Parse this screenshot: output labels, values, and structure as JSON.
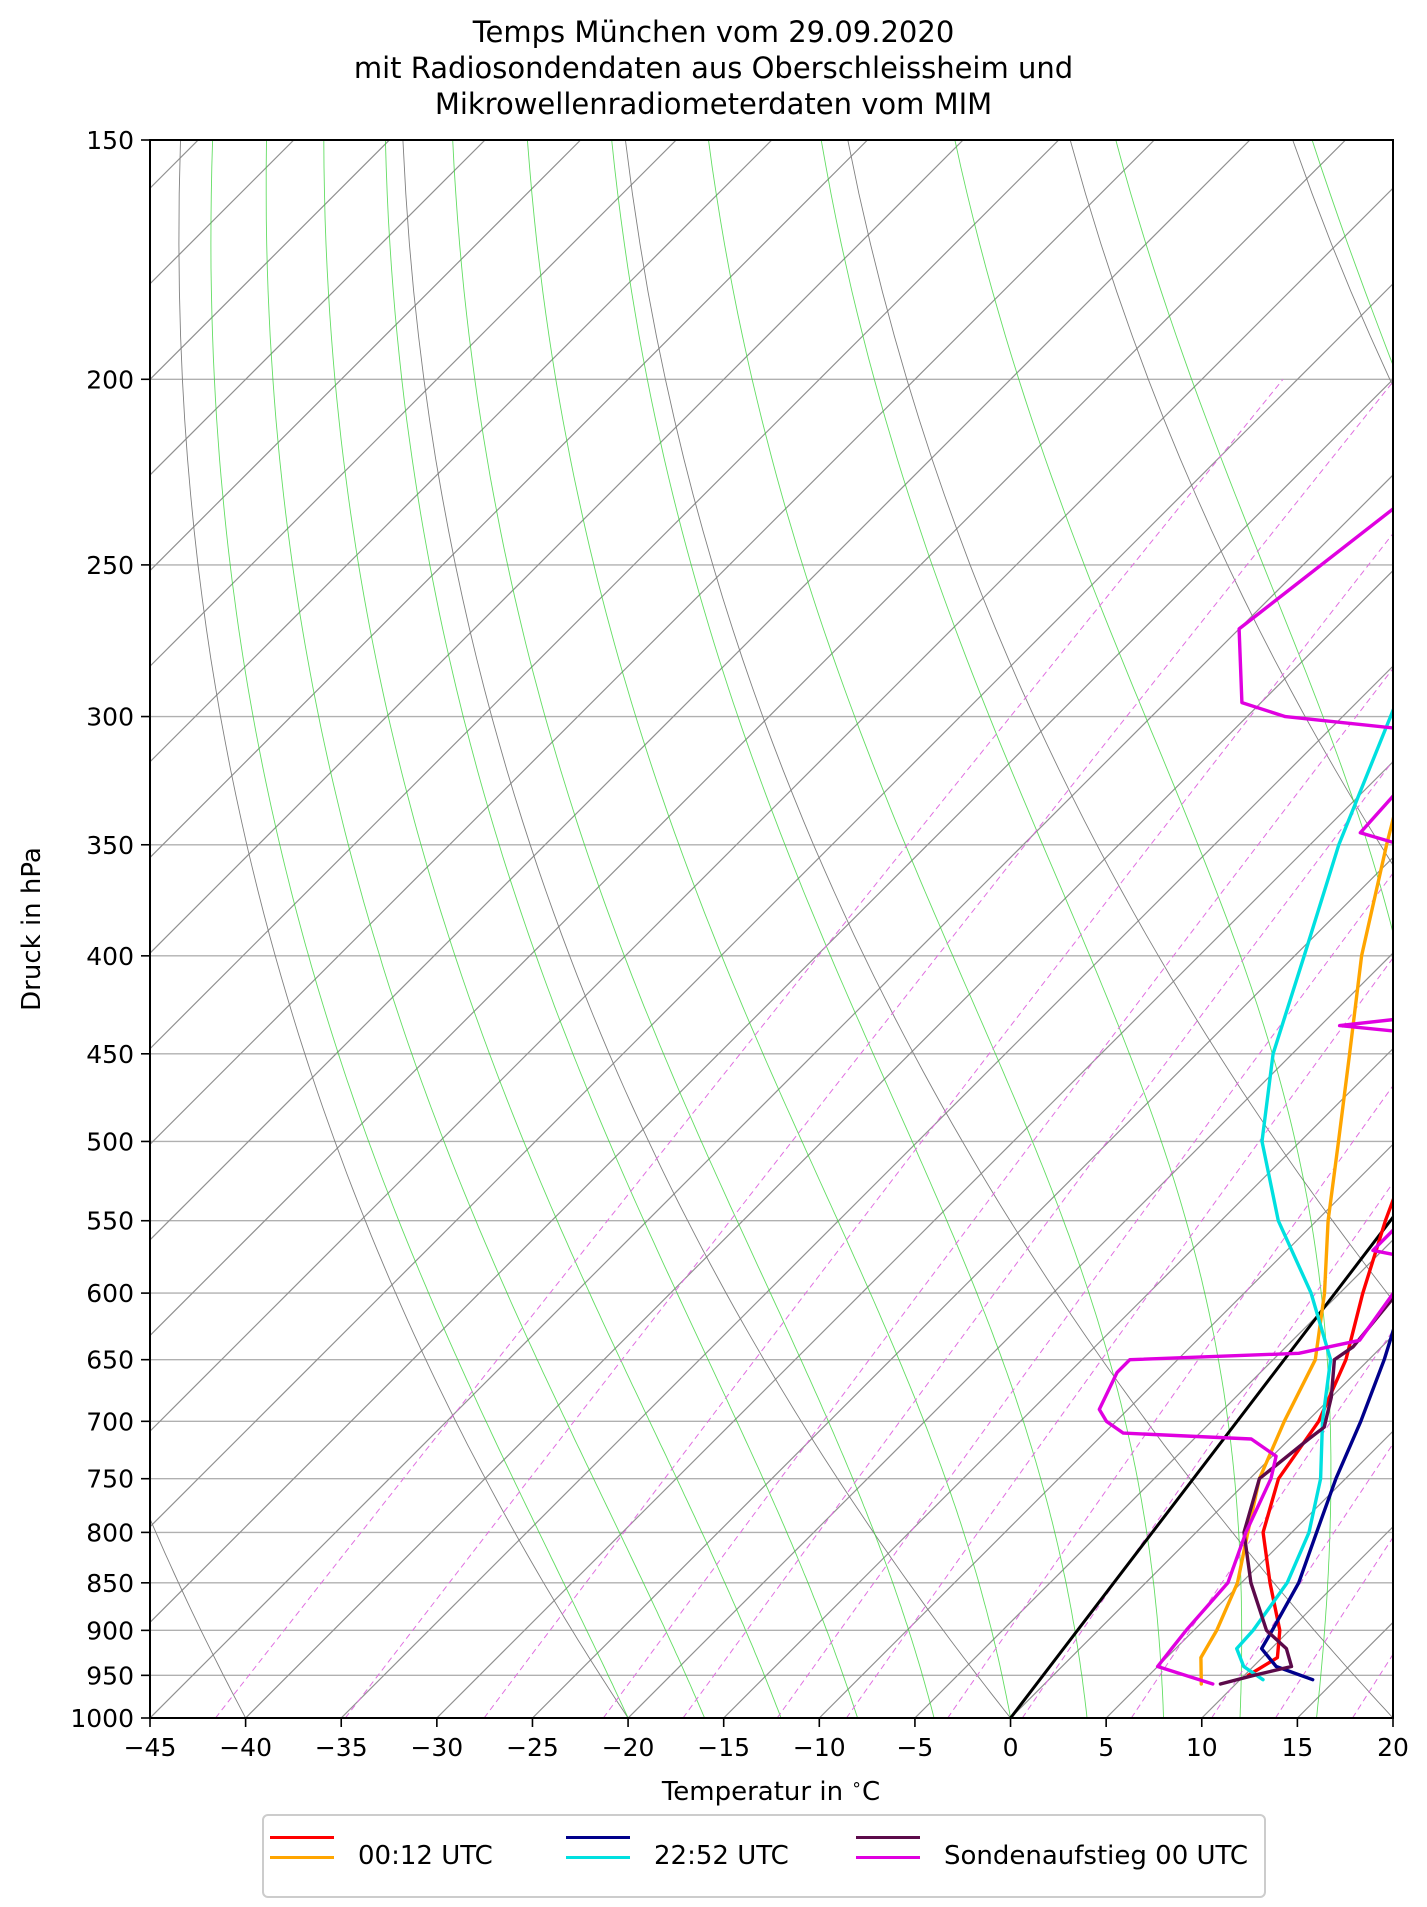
{
  "title": {
    "line1": "Temps München vom 29.09.2020",
    "line2": "mit Radiosondendaten aus Oberschleissheim und",
    "line3": "Mikrowellenradiometerdaten vom MIM"
  },
  "chart_data": {
    "type": "line",
    "diagram": "skew-T log-p",
    "xlabel": "Temperatur in $^\\circ$C",
    "ylabel": "Druck in hPa",
    "xlim": [
      -45,
      20
    ],
    "ylim": [
      1000,
      150
    ],
    "y_scale": "log",
    "x_ticks": [
      -45,
      -40,
      -35,
      -30,
      -25,
      -20,
      -15,
      -10,
      -5,
      0,
      5,
      10,
      15,
      20
    ],
    "x_tick_labels": [
      "−45",
      "−40",
      "−35",
      "−30",
      "−25",
      "−20",
      "−15",
      "−10",
      "−5",
      "0",
      "5",
      "10",
      "15",
      "20"
    ],
    "y_ticks": [
      1000,
      950,
      900,
      850,
      800,
      750,
      700,
      650,
      600,
      550,
      500,
      450,
      400,
      350,
      300,
      250,
      200,
      150
    ],
    "y_tick_labels": [
      "1000",
      "950",
      "900",
      "850",
      "800",
      "750",
      "700",
      "650",
      "600",
      "550",
      "500",
      "450",
      "400",
      "350",
      "300",
      "250",
      "200",
      "150"
    ],
    "grid": true,
    "legend_position": "bottom-center, below plot",
    "legend": [
      {
        "label": "00:12 UTC",
        "colors": [
          "#ff0000",
          "#ffa500"
        ]
      },
      {
        "label": "22:52 UTC",
        "colors": [
          "#00008b",
          "#00e0e0"
        ]
      },
      {
        "label": "Sondenaufstieg 00 UTC",
        "colors": [
          "#5c0a4a",
          "#e000e0"
        ]
      }
    ],
    "series": [
      {
        "color": "#ff0000",
        "temperature": [
          [
            950,
            10.2
          ],
          [
            930,
            10.8
          ],
          [
            900,
            9.5
          ],
          [
            850,
            6.5
          ],
          [
            800,
            3.5
          ],
          [
            750,
            1.5
          ],
          [
            700,
            0.6
          ],
          [
            650,
            -1.2
          ],
          [
            600,
            -3.8
          ],
          [
            550,
            -6.4
          ],
          [
            500,
            -9.0
          ],
          [
            450,
            -12.2
          ],
          [
            400,
            -15.5
          ],
          [
            350,
            -19.0
          ],
          [
            300,
            -23.0
          ],
          [
            270,
            -25.2
          ],
          [
            250,
            -25.8
          ]
        ]
      },
      {
        "color": "#ffa500",
        "temperature": [
          [
            960,
            8.2
          ],
          [
            930,
            6.8
          ],
          [
            900,
            6.2
          ],
          [
            850,
            4.8
          ],
          [
            800,
            2.7
          ],
          [
            750,
            0.5
          ],
          [
            700,
            -1.2
          ],
          [
            650,
            -2.8
          ],
          [
            600,
            -5.8
          ],
          [
            550,
            -9.4
          ],
          [
            500,
            -13.0
          ],
          [
            450,
            -17.0
          ],
          [
            400,
            -21.5
          ],
          [
            350,
            -26.0
          ],
          [
            300,
            -31.0
          ],
          [
            250,
            -36.3
          ]
        ]
      },
      {
        "color": "#00008b",
        "temperature": [
          [
            955,
            13.8
          ],
          [
            940,
            11.2
          ],
          [
            920,
            9.5
          ],
          [
            900,
            9.1
          ],
          [
            850,
            8.0
          ],
          [
            800,
            6.3
          ],
          [
            750,
            4.5
          ],
          [
            700,
            2.8
          ],
          [
            650,
            0.8
          ],
          [
            600,
            -1.6
          ],
          [
            550,
            -4.4
          ],
          [
            500,
            -7.5
          ],
          [
            450,
            -11.0
          ],
          [
            400,
            -14.8
          ],
          [
            350,
            -18.8
          ],
          [
            300,
            -22.3
          ],
          [
            270,
            -25.0
          ],
          [
            250,
            -25.8
          ]
        ]
      },
      {
        "color": "#00e0e0",
        "temperature": [
          [
            955,
            11.2
          ],
          [
            940,
            9.5
          ],
          [
            920,
            8.2
          ],
          [
            900,
            8.1
          ],
          [
            850,
            7.4
          ],
          [
            800,
            5.9
          ],
          [
            750,
            3.7
          ],
          [
            700,
            0.8
          ],
          [
            650,
            -2.0
          ],
          [
            600,
            -6.5
          ],
          [
            550,
            -12.0
          ],
          [
            500,
            -17.0
          ],
          [
            450,
            -21.0
          ],
          [
            400,
            -24.5
          ],
          [
            350,
            -28.5
          ],
          [
            300,
            -32.5
          ],
          [
            250,
            -37.2
          ]
        ]
      },
      {
        "color": "#5c0a4a",
        "temperature": [
          [
            960,
            9.2
          ],
          [
            950,
            10.5
          ],
          [
            940,
            12.0
          ],
          [
            920,
            10.8
          ],
          [
            900,
            8.8
          ],
          [
            850,
            5.5
          ],
          [
            800,
            2.5
          ],
          [
            750,
            0.5
          ],
          [
            715,
            1.0
          ],
          [
            705,
            1.2
          ],
          [
            680,
            0.0
          ],
          [
            650,
            -1.8
          ],
          [
            640,
            -1.5
          ],
          [
            600,
            -2.0
          ],
          [
            575,
            -2.5
          ],
          [
            550,
            -4.5
          ],
          [
            520,
            -6.0
          ],
          [
            500,
            -6.0
          ],
          [
            450,
            -10.0
          ],
          [
            430,
            -12.0
          ],
          [
            400,
            -15.0
          ],
          [
            350,
            -19.5
          ],
          [
            300,
            -24.0
          ],
          [
            295,
            -23.5
          ],
          [
            290,
            -22.0
          ],
          [
            250,
            -19.0
          ],
          [
            200,
            -12.5
          ],
          [
            150,
            -11.8
          ]
        ]
      },
      {
        "color": "#e000e0",
        "temperature": [
          [
            960,
            8.8
          ],
          [
            940,
            5.0
          ],
          [
            920,
            4.8
          ],
          [
            900,
            4.6
          ],
          [
            850,
            4.3
          ],
          [
            800,
            2.6
          ],
          [
            750,
            1.1
          ],
          [
            730,
            0.2
          ],
          [
            715,
            -2.0
          ],
          [
            710,
            -9.0
          ],
          [
            700,
            -10.5
          ],
          [
            690,
            -11.5
          ],
          [
            660,
            -12.5
          ],
          [
            650,
            -12.5
          ],
          [
            645,
            -4.0
          ],
          [
            635,
            -1.5
          ],
          [
            600,
            -2.2
          ],
          [
            575,
            -3.2
          ],
          [
            570,
            -5.5
          ],
          [
            550,
            -5.5
          ],
          [
            530,
            -5.5
          ],
          [
            500,
            -9.0
          ],
          [
            460,
            -11.0
          ],
          [
            450,
            -11.5
          ],
          [
            440,
            -13.5
          ],
          [
            435,
            -19.0
          ],
          [
            430,
            -15.0
          ],
          [
            400,
            -19.0
          ],
          [
            380,
            -21.0
          ],
          [
            360,
            -22.0
          ],
          [
            355,
            -22.5
          ],
          [
            345,
            -28.0
          ],
          [
            310,
            -28.5
          ],
          [
            305,
            -30.5
          ],
          [
            300,
            -38.0
          ],
          [
            295,
            -41.0
          ],
          [
            270,
            -45.0
          ],
          [
            166,
            -39.0
          ],
          [
            165,
            -45.0
          ]
        ]
      }
    ],
    "dry_adiabat_color": "#808080",
    "moist_adiabat_color": "#3cd43c",
    "mixing_ratio_color": "#e070e0",
    "isotherm_color": "#909090",
    "reference_line": {
      "color": "#000000",
      "x_at_1000": 0,
      "x_at_300": 40
    }
  }
}
